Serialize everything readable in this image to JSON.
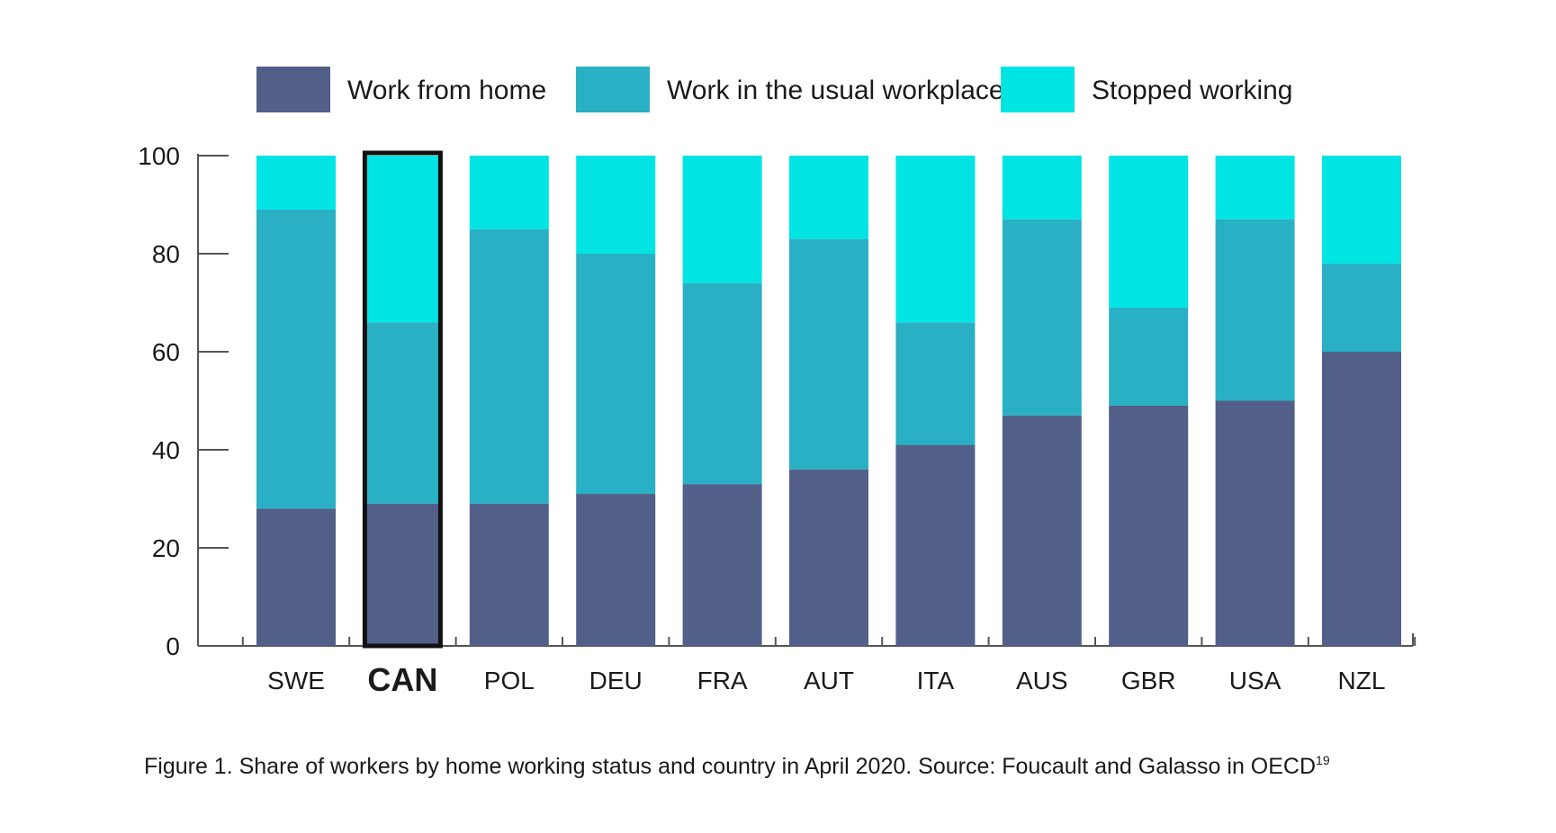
{
  "chart_data": {
    "type": "bar",
    "stacked": true,
    "categories": [
      "SWE",
      "CAN",
      "POL",
      "DEU",
      "FRA",
      "AUT",
      "ITA",
      "AUS",
      "GBR",
      "USA",
      "NZL"
    ],
    "highlighted_category": "CAN",
    "series": [
      {
        "name": "Work from home",
        "color": "#525f89",
        "values": [
          28,
          29,
          29,
          31,
          33,
          36,
          41,
          47,
          49,
          50,
          60
        ]
      },
      {
        "name": "Work in the usual workplace",
        "color": "#2ab0c4",
        "values": [
          61,
          37,
          56,
          49,
          41,
          47,
          25,
          40,
          20,
          37,
          18
        ]
      },
      {
        "name": "Stopped working",
        "color": "#00e4e4",
        "values": [
          11,
          34,
          15,
          20,
          26,
          17,
          34,
          13,
          31,
          13,
          22
        ]
      }
    ],
    "yticks": [
      "0",
      "20",
      "40",
      "60",
      "80",
      "100"
    ],
    "ylim": [
      0,
      100
    ],
    "legend_position": "top",
    "grid": false
  },
  "caption": {
    "text": "Figure 1. Share of workers by home working status and country in April 2020. Source: Foucault and Galasso in OECD",
    "superscript": "19"
  }
}
